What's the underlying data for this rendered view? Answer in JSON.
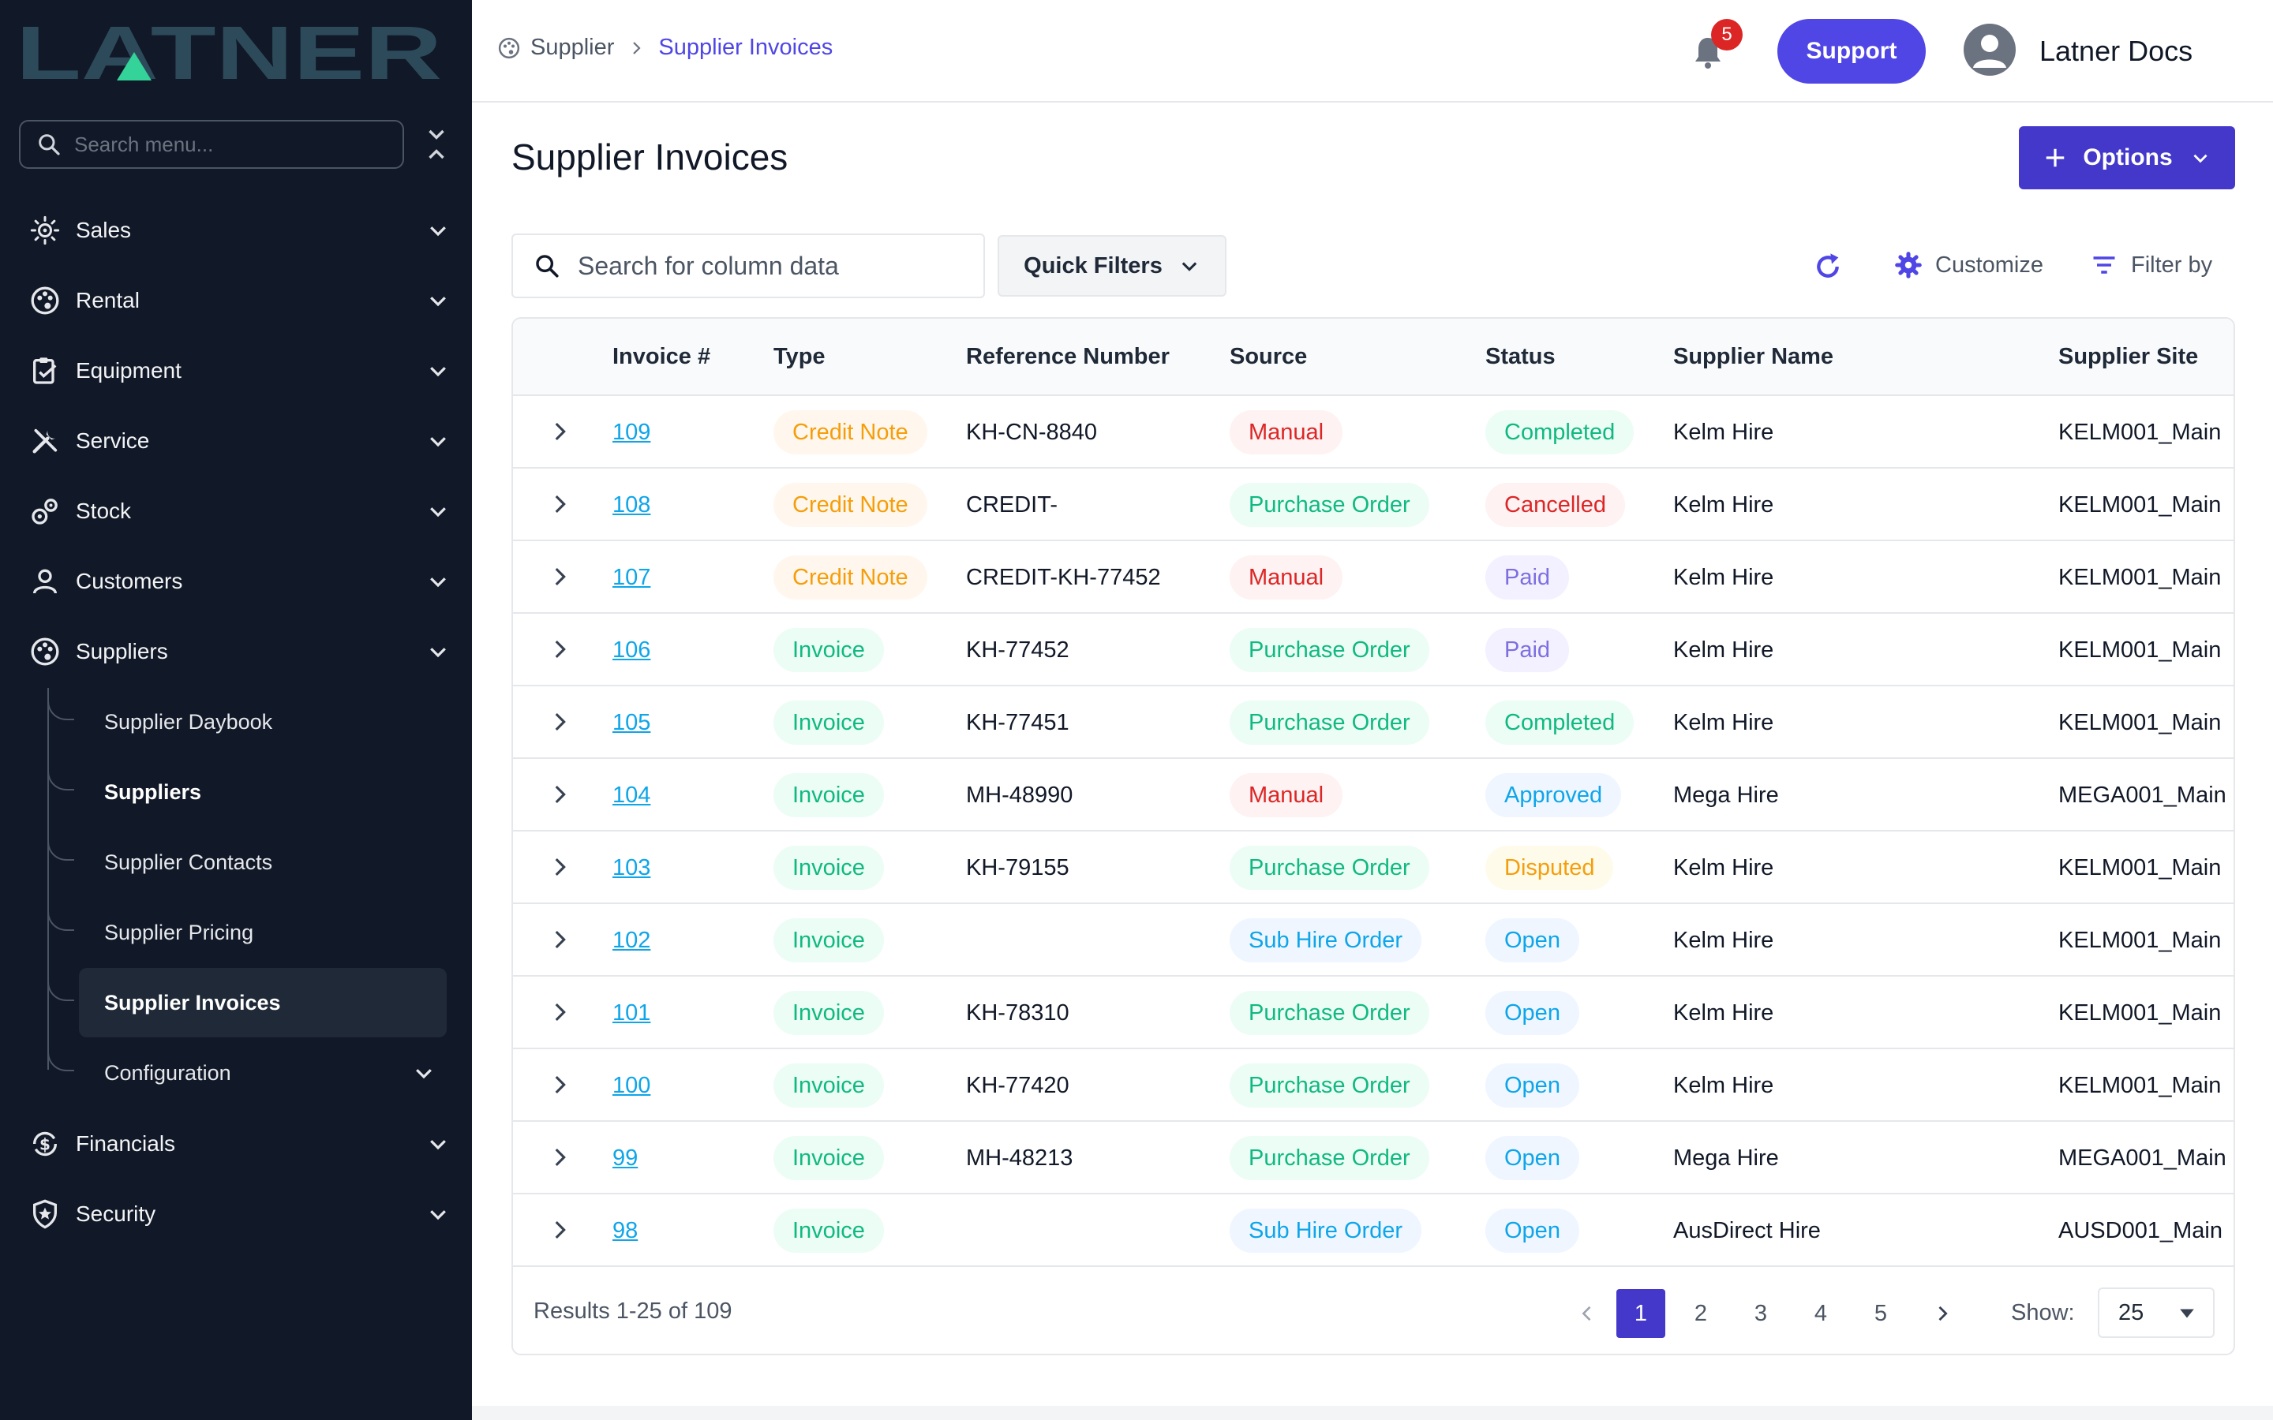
{
  "brand": {
    "logo_text": "LATNER",
    "logo_color": "#2d4a5a",
    "logo_accent": "#34d399"
  },
  "sidebar": {
    "search_placeholder": "Search menu...",
    "items": [
      {
        "label": "Sales",
        "icon": "sun-cog-icon"
      },
      {
        "label": "Rental",
        "icon": "palette-icon"
      },
      {
        "label": "Equipment",
        "icon": "clipboard-icon"
      },
      {
        "label": "Service",
        "icon": "tools-icon"
      },
      {
        "label": "Stock",
        "icon": "gears-icon"
      },
      {
        "label": "Customers",
        "icon": "user-icon"
      },
      {
        "label": "Suppliers",
        "icon": "palette-icon"
      }
    ],
    "sub_items": [
      {
        "label": "Supplier Daybook"
      },
      {
        "label": "Suppliers"
      },
      {
        "label": "Supplier Contacts"
      },
      {
        "label": "Supplier Pricing"
      },
      {
        "label": "Supplier Invoices"
      },
      {
        "label": "Configuration"
      }
    ],
    "bottom_items": [
      {
        "label": "Financials",
        "icon": "dollar-cycle-icon"
      },
      {
        "label": "Security",
        "icon": "shield-icon"
      }
    ]
  },
  "header": {
    "breadcrumb": {
      "parent": "Supplier",
      "current": "Supplier Invoices"
    },
    "notification_count": "5",
    "support_label": "Support",
    "user_name": "Latner Docs"
  },
  "page": {
    "title": "Supplier Invoices",
    "options_label": "Options",
    "search_placeholder": "Search for column data",
    "quick_filters_label": "Quick Filters",
    "customize_label": "Customize",
    "filter_by_label": "Filter by"
  },
  "table": {
    "columns": [
      "Invoice #",
      "Type",
      "Reference Number",
      "Source",
      "Status",
      "Supplier Name",
      "Supplier Site"
    ],
    "rows": [
      {
        "invoice": "109",
        "type": "Credit Note",
        "ref": "KH-CN-8840",
        "source": "Manual",
        "status": "Completed",
        "supplier": "Kelm Hire",
        "site": "KELM001_Main"
      },
      {
        "invoice": "108",
        "type": "Credit Note",
        "ref": "CREDIT-",
        "source": "Purchase Order",
        "status": "Cancelled",
        "supplier": "Kelm Hire",
        "site": "KELM001_Main"
      },
      {
        "invoice": "107",
        "type": "Credit Note",
        "ref": "CREDIT-KH-77452",
        "source": "Manual",
        "status": "Paid",
        "supplier": "Kelm Hire",
        "site": "KELM001_Main"
      },
      {
        "invoice": "106",
        "type": "Invoice",
        "ref": "KH-77452",
        "source": "Purchase Order",
        "status": "Paid",
        "supplier": "Kelm Hire",
        "site": "KELM001_Main"
      },
      {
        "invoice": "105",
        "type": "Invoice",
        "ref": "KH-77451",
        "source": "Purchase Order",
        "status": "Completed",
        "supplier": "Kelm Hire",
        "site": "KELM001_Main"
      },
      {
        "invoice": "104",
        "type": "Invoice",
        "ref": "MH-48990",
        "source": "Manual",
        "status": "Approved",
        "supplier": "Mega Hire",
        "site": "MEGA001_Main"
      },
      {
        "invoice": "103",
        "type": "Invoice",
        "ref": "KH-79155",
        "source": "Purchase Order",
        "status": "Disputed",
        "supplier": "Kelm Hire",
        "site": "KELM001_Main"
      },
      {
        "invoice": "102",
        "type": "Invoice",
        "ref": "",
        "source": "Sub Hire Order",
        "status": "Open",
        "supplier": "Kelm Hire",
        "site": "KELM001_Main"
      },
      {
        "invoice": "101",
        "type": "Invoice",
        "ref": "KH-78310",
        "source": "Purchase Order",
        "status": "Open",
        "supplier": "Kelm Hire",
        "site": "KELM001_Main"
      },
      {
        "invoice": "100",
        "type": "Invoice",
        "ref": "KH-77420",
        "source": "Purchase Order",
        "status": "Open",
        "supplier": "Kelm Hire",
        "site": "KELM001_Main"
      },
      {
        "invoice": "99",
        "type": "Invoice",
        "ref": "MH-48213",
        "source": "Purchase Order",
        "status": "Open",
        "supplier": "Mega Hire",
        "site": "MEGA001_Main"
      },
      {
        "invoice": "98",
        "type": "Invoice",
        "ref": "",
        "source": "Sub Hire Order",
        "status": "Open",
        "supplier": "AusDirect Hire",
        "site": "AUSD001_Main"
      }
    ]
  },
  "pagination": {
    "results_text": "Results 1-25 of 109",
    "pages": [
      "1",
      "2",
      "3",
      "4",
      "5"
    ],
    "current_page": "1",
    "show_label": "Show:",
    "page_size": "25"
  },
  "colors": {
    "primary": "#4f46e5",
    "sidebar_bg": "#111827",
    "link": "#0ea5e9"
  }
}
